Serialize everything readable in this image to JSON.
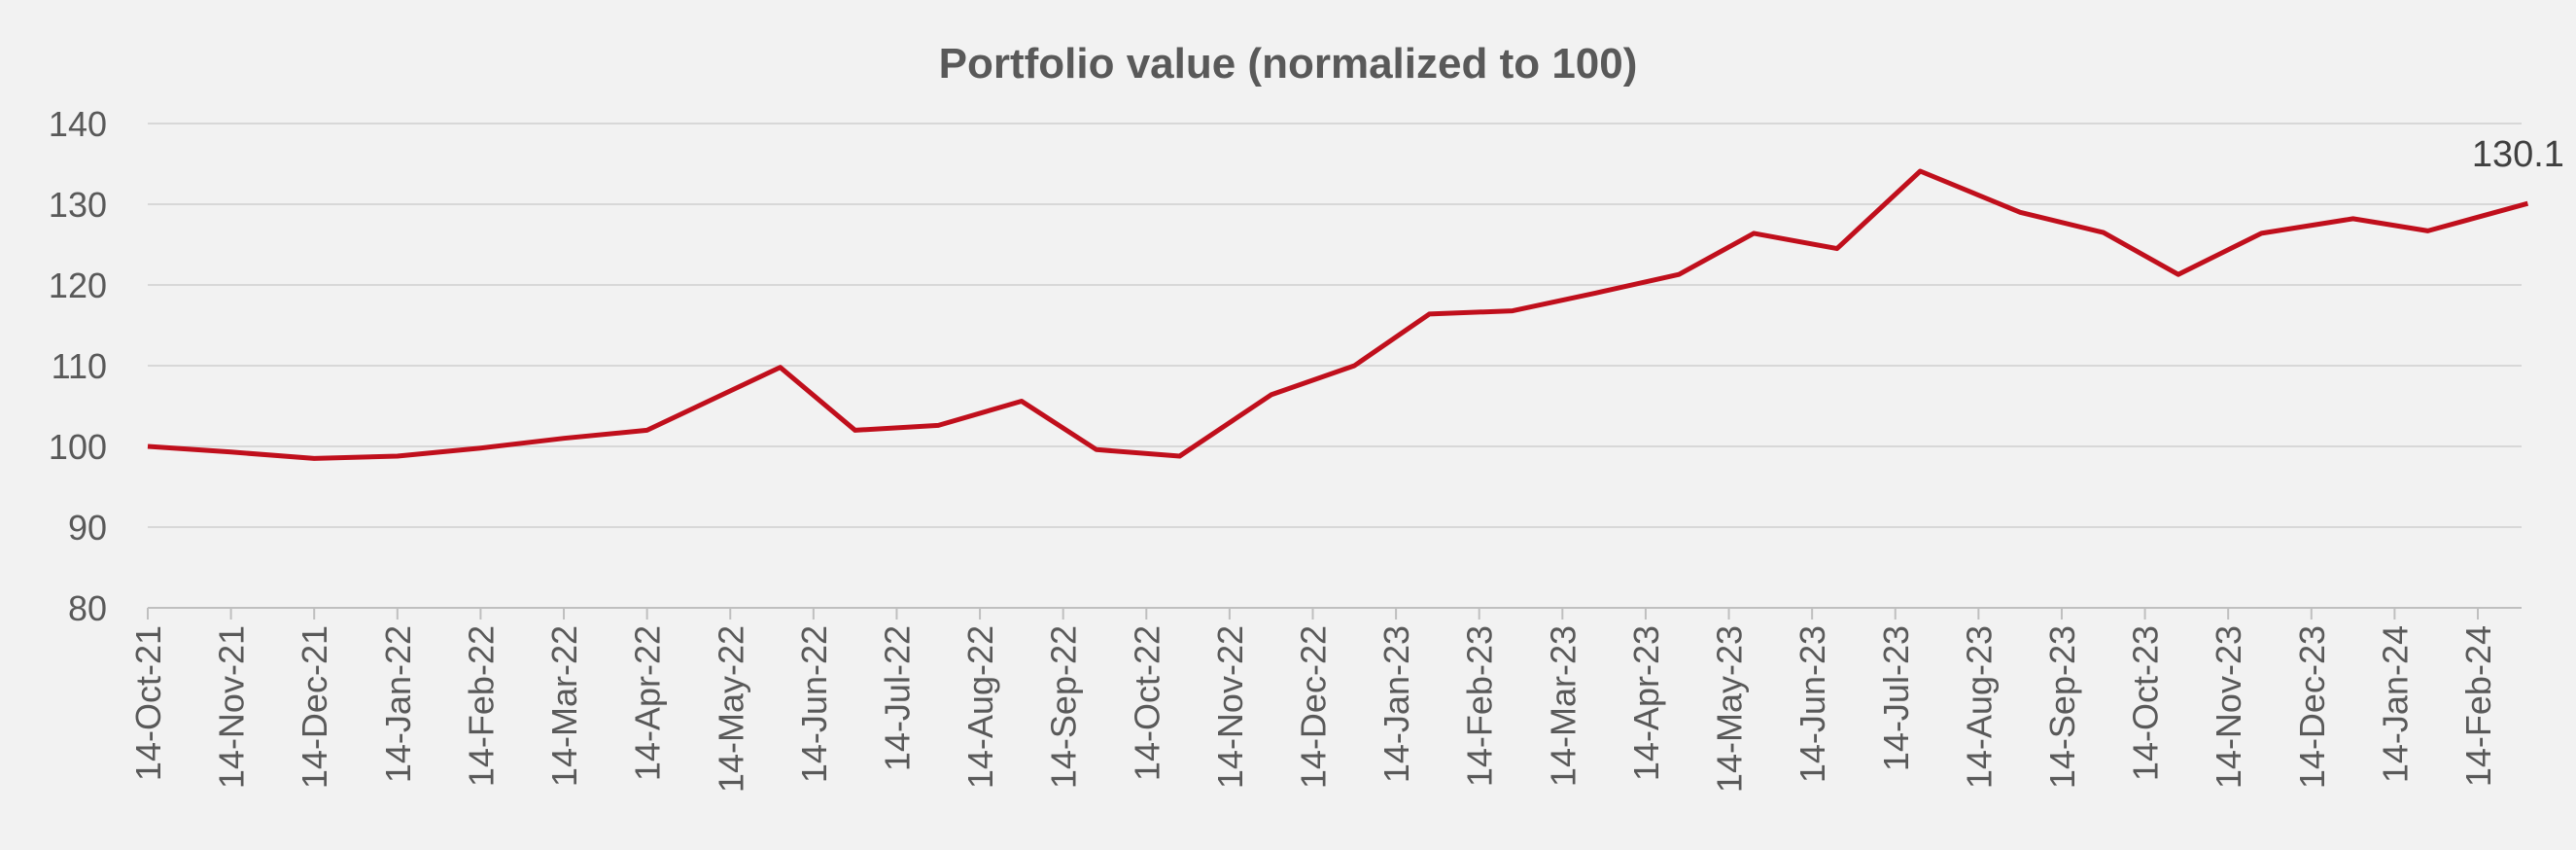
{
  "chart_data": {
    "type": "line",
    "title": "Portfolio value (normalized to 100)",
    "xlabel": "",
    "ylabel": "",
    "ylim": [
      80,
      140
    ],
    "yticks": [
      80,
      90,
      100,
      110,
      120,
      130,
      140
    ],
    "grid": true,
    "legend": "none",
    "x_unit": "months since 14-Oct-21",
    "xlim": [
      0,
      28.6
    ],
    "xtick_labels": [
      "14-Oct-21",
      "14-Nov-21",
      "14-Dec-21",
      "14-Jan-22",
      "14-Feb-22",
      "14-Mar-22",
      "14-Apr-22",
      "14-May-22",
      "14-Jun-22",
      "14-Jul-22",
      "14-Aug-22",
      "14-Sep-22",
      "14-Oct-22",
      "14-Nov-22",
      "14-Dec-22",
      "14-Jan-23",
      "14-Feb-23",
      "14-Mar-23",
      "14-Apr-23",
      "14-May-23",
      "14-Jun-23",
      "14-Jul-23",
      "14-Aug-23",
      "14-Sep-23",
      "14-Oct-23",
      "14-Nov-23",
      "14-Dec-23",
      "14-Jan-24",
      "14-Feb-24"
    ],
    "series": [
      {
        "name": "Portfolio value",
        "color": "#C00F1C",
        "x": [
          0,
          1,
          2,
          3,
          4,
          5,
          6,
          7.6,
          8.5,
          9.5,
          10.5,
          11.4,
          12.4,
          13.5,
          14.5,
          15.4,
          16.4,
          17.4,
          18.4,
          19.3,
          20.3,
          21.3,
          22.5,
          23.5,
          24.4,
          25.4,
          26.5,
          27.4,
          28.6
        ],
        "values": [
          100,
          99.3,
          98.5,
          98.8,
          99.8,
          101,
          102,
          109.8,
          102,
          102.6,
          105.6,
          99.6,
          98.8,
          106.4,
          110,
          116.4,
          116.8,
          119,
          121.3,
          126.4,
          124.5,
          134.1,
          129,
          126.5,
          121.3,
          126.4,
          128.2,
          126.7,
          130.1
        ]
      }
    ],
    "annotations": [
      {
        "label": "130.1",
        "at": "last point"
      }
    ]
  }
}
